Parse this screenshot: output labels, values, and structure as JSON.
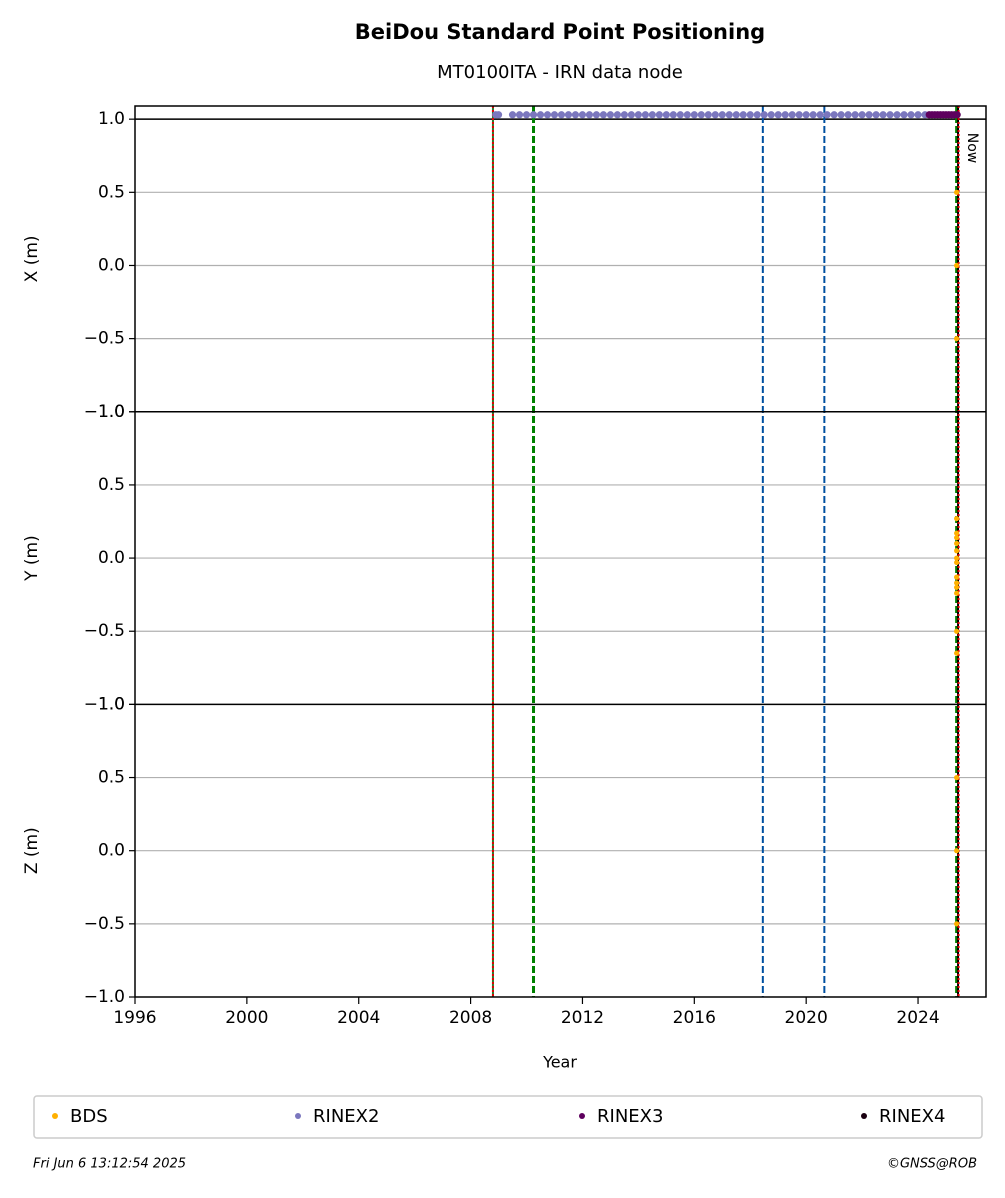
{
  "chart_data": {
    "type": "scatter",
    "title": "BeiDou Standard Point Positioning",
    "subtitle": "MT0100ITA - IRN data node",
    "xlabel": "Year",
    "xlim": [
      1996,
      2026.43
    ],
    "xticks": [
      1996,
      2000,
      2004,
      2008,
      2012,
      2016,
      2020,
      2024
    ],
    "grid": true,
    "annotation": "Now",
    "vlines": [
      {
        "x": 2008.8,
        "color": "#2a7a2a",
        "style": "solid"
      },
      {
        "x": 2008.8,
        "color": "#e00000",
        "style": "dotted"
      },
      {
        "x": 2010.25,
        "color": "#008000",
        "style": "dashed"
      },
      {
        "x": 2018.45,
        "color": "#0050a0",
        "style": "dashed"
      },
      {
        "x": 2020.65,
        "color": "#0050a0",
        "style": "dashed"
      },
      {
        "x": 2025.38,
        "color": "#008000",
        "style": "dashed"
      },
      {
        "x": 2025.43,
        "color": "#000000",
        "style": "solid"
      },
      {
        "x": 2025.45,
        "color": "#e00000",
        "style": "dotted"
      }
    ],
    "panels": [
      {
        "ylabel": "X (m)",
        "ylim": [
          -1,
          1.09
        ],
        "hline": 1,
        "yticks": [
          {
            "value": -1,
            "label": "−1.0"
          },
          {
            "value": -0.5,
            "label": "−0.5"
          },
          {
            "value": 0,
            "label": "0.0"
          },
          {
            "value": 0.5,
            "label": "0.5"
          },
          {
            "value": 1,
            "label": "1.0"
          }
        ]
      },
      {
        "ylabel": "Y (m)",
        "ylim": [
          -1,
          1
        ],
        "yticks": [
          {
            "value": -1,
            "label": "−1.0"
          },
          {
            "value": -0.5,
            "label": "−0.5"
          },
          {
            "value": 0,
            "label": "0.0"
          },
          {
            "value": 0.5,
            "label": "0.5"
          },
          {
            "value": 1,
            "label": "1.0"
          }
        ]
      },
      {
        "ylabel": "Z (m)",
        "ylim": [
          -1,
          1
        ],
        "yticks": [
          {
            "value": -1,
            "label": "−1.0"
          },
          {
            "value": -0.5,
            "label": "−0.5"
          },
          {
            "value": 0,
            "label": "0.0"
          },
          {
            "value": 0.5,
            "label": "0.5"
          },
          {
            "value": 1,
            "label": "1.0"
          }
        ]
      }
    ],
    "series": [
      {
        "name": "BDS",
        "color": "#ffb000",
        "data": [
          {
            "x": [
              2025.38,
              2025.38,
              2025.38
            ],
            "values": [
              0.5,
              0.0,
              -0.5
            ]
          },
          {
            "x": [
              2025.38,
              2025.38,
              2025.38,
              2025.38,
              2025.38,
              2025.38,
              2025.38,
              2025.38,
              2025.38,
              2025.38,
              2025.38,
              2025.38,
              2025.38
            ],
            "values": [
              0.27,
              0.17,
              0.14,
              0.1,
              0.05,
              0.0,
              -0.03,
              -0.13,
              -0.17,
              -0.2,
              -0.24,
              -0.5,
              -0.65
            ]
          },
          {
            "x": [
              2025.38,
              2025.38,
              2025.38
            ],
            "values": [
              0.5,
              0.0,
              -0.5
            ]
          }
        ]
      },
      {
        "name": "RINEX2",
        "color": "#7b77be",
        "data": [
          {
            "x": [
              2008.9,
              2009.0,
              2009.5,
              2009.75,
              2010.0,
              2010.25,
              2010.5,
              2010.75,
              2011.0,
              2011.25,
              2011.5,
              2011.75,
              2012.0,
              2012.25,
              2012.5,
              2012.75,
              2013.0,
              2013.25,
              2013.5,
              2013.75,
              2014.0,
              2014.25,
              2014.5,
              2014.75,
              2015.0,
              2015.25,
              2015.5,
              2015.75,
              2016.0,
              2016.25,
              2016.5,
              2016.75,
              2017.0,
              2017.25,
              2017.5,
              2017.75,
              2018.0,
              2018.25,
              2018.5,
              2018.75,
              2019.0,
              2019.25,
              2019.5,
              2019.75,
              2020.0,
              2020.25,
              2020.5,
              2020.75,
              2021.0,
              2021.25,
              2021.5,
              2021.75,
              2022.0,
              2022.25,
              2022.5,
              2022.75,
              2023.0,
              2023.25,
              2023.5,
              2023.75,
              2024.0,
              2024.25
            ],
            "values": [
              1.03,
              1.03,
              1.03,
              1.03,
              1.03,
              1.03,
              1.03,
              1.03,
              1.03,
              1.03,
              1.03,
              1.03,
              1.03,
              1.03,
              1.03,
              1.03,
              1.03,
              1.03,
              1.03,
              1.03,
              1.03,
              1.03,
              1.03,
              1.03,
              1.03,
              1.03,
              1.03,
              1.03,
              1.03,
              1.03,
              1.03,
              1.03,
              1.03,
              1.03,
              1.03,
              1.03,
              1.03,
              1.03,
              1.03,
              1.03,
              1.03,
              1.03,
              1.03,
              1.03,
              1.03,
              1.03,
              1.03,
              1.03,
              1.03,
              1.03,
              1.03,
              1.03,
              1.03,
              1.03,
              1.03,
              1.03,
              1.03,
              1.03,
              1.03,
              1.03,
              1.03,
              1.03
            ]
          }
        ]
      },
      {
        "name": "RINEX3",
        "color": "#5e005e",
        "data": [
          {
            "x": [
              2024.4,
              2024.5,
              2024.6,
              2024.7,
              2024.8,
              2024.9,
              2025.0,
              2025.1,
              2025.2,
              2025.3,
              2025.4
            ],
            "values": [
              1.03,
              1.03,
              1.03,
              1.03,
              1.03,
              1.03,
              1.03,
              1.03,
              1.03,
              1.03,
              1.03
            ]
          }
        ]
      },
      {
        "name": "RINEX4",
        "color": "#1a0010",
        "data": []
      }
    ],
    "footer_left": "Fri Jun  6 13:12:54 2025",
    "footer_right": "©GNSS@ROB"
  }
}
